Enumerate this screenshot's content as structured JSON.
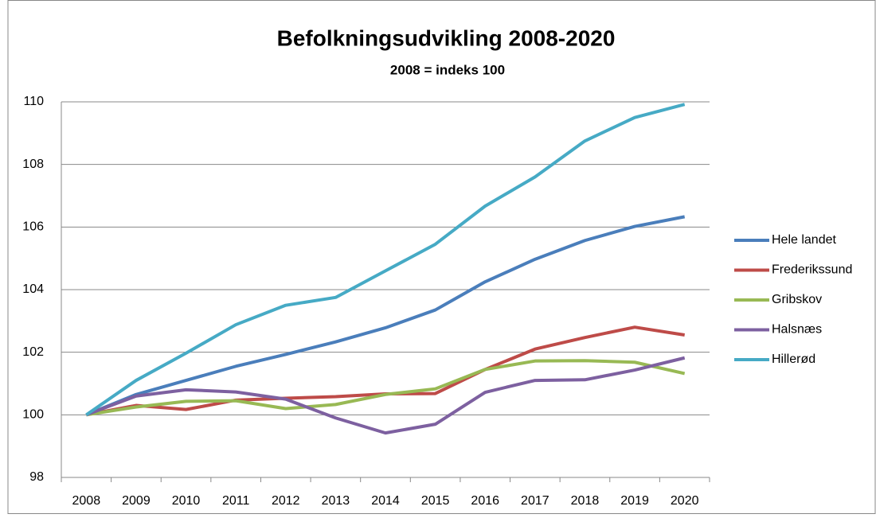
{
  "chart_data": {
    "type": "line",
    "title": "Befolkningsudvikling 2008-2020",
    "subtitle": "2008 = indeks 100",
    "categories": [
      "2008",
      "2009",
      "2010",
      "2011",
      "2012",
      "2013",
      "2014",
      "2015",
      "2016",
      "2017",
      "2018",
      "2019",
      "2020"
    ],
    "series": [
      {
        "name": "Hele landet",
        "color": "#4a7ebb",
        "values": [
          100,
          100.65,
          101.1,
          101.55,
          101.93,
          102.33,
          102.78,
          103.35,
          104.25,
          104.97,
          105.57,
          106.02,
          106.33
        ]
      },
      {
        "name": "Frederikssund",
        "color": "#be4b48",
        "values": [
          100,
          100.3,
          100.17,
          100.47,
          100.53,
          100.58,
          100.67,
          100.68,
          101.45,
          102.1,
          102.47,
          102.8,
          102.55
        ]
      },
      {
        "name": "Gribskov",
        "color": "#98b954",
        "values": [
          100,
          100.25,
          100.43,
          100.45,
          100.2,
          100.33,
          100.65,
          100.83,
          101.45,
          101.72,
          101.73,
          101.68,
          101.32
        ]
      },
      {
        "name": "Halsnæs",
        "color": "#7d60a0",
        "values": [
          100,
          100.6,
          100.8,
          100.73,
          100.5,
          99.9,
          99.42,
          99.7,
          100.72,
          101.1,
          101.12,
          101.43,
          101.82
        ]
      },
      {
        "name": "Hillerød",
        "color": "#46aac5",
        "values": [
          100,
          101.1,
          101.97,
          102.88,
          103.5,
          103.75,
          104.6,
          105.45,
          106.67,
          107.6,
          108.75,
          109.5,
          109.92
        ]
      }
    ],
    "ylim": [
      98,
      110
    ],
    "yticks": [
      98,
      100,
      102,
      104,
      106,
      108,
      110
    ],
    "grid": true,
    "legend": "right"
  }
}
